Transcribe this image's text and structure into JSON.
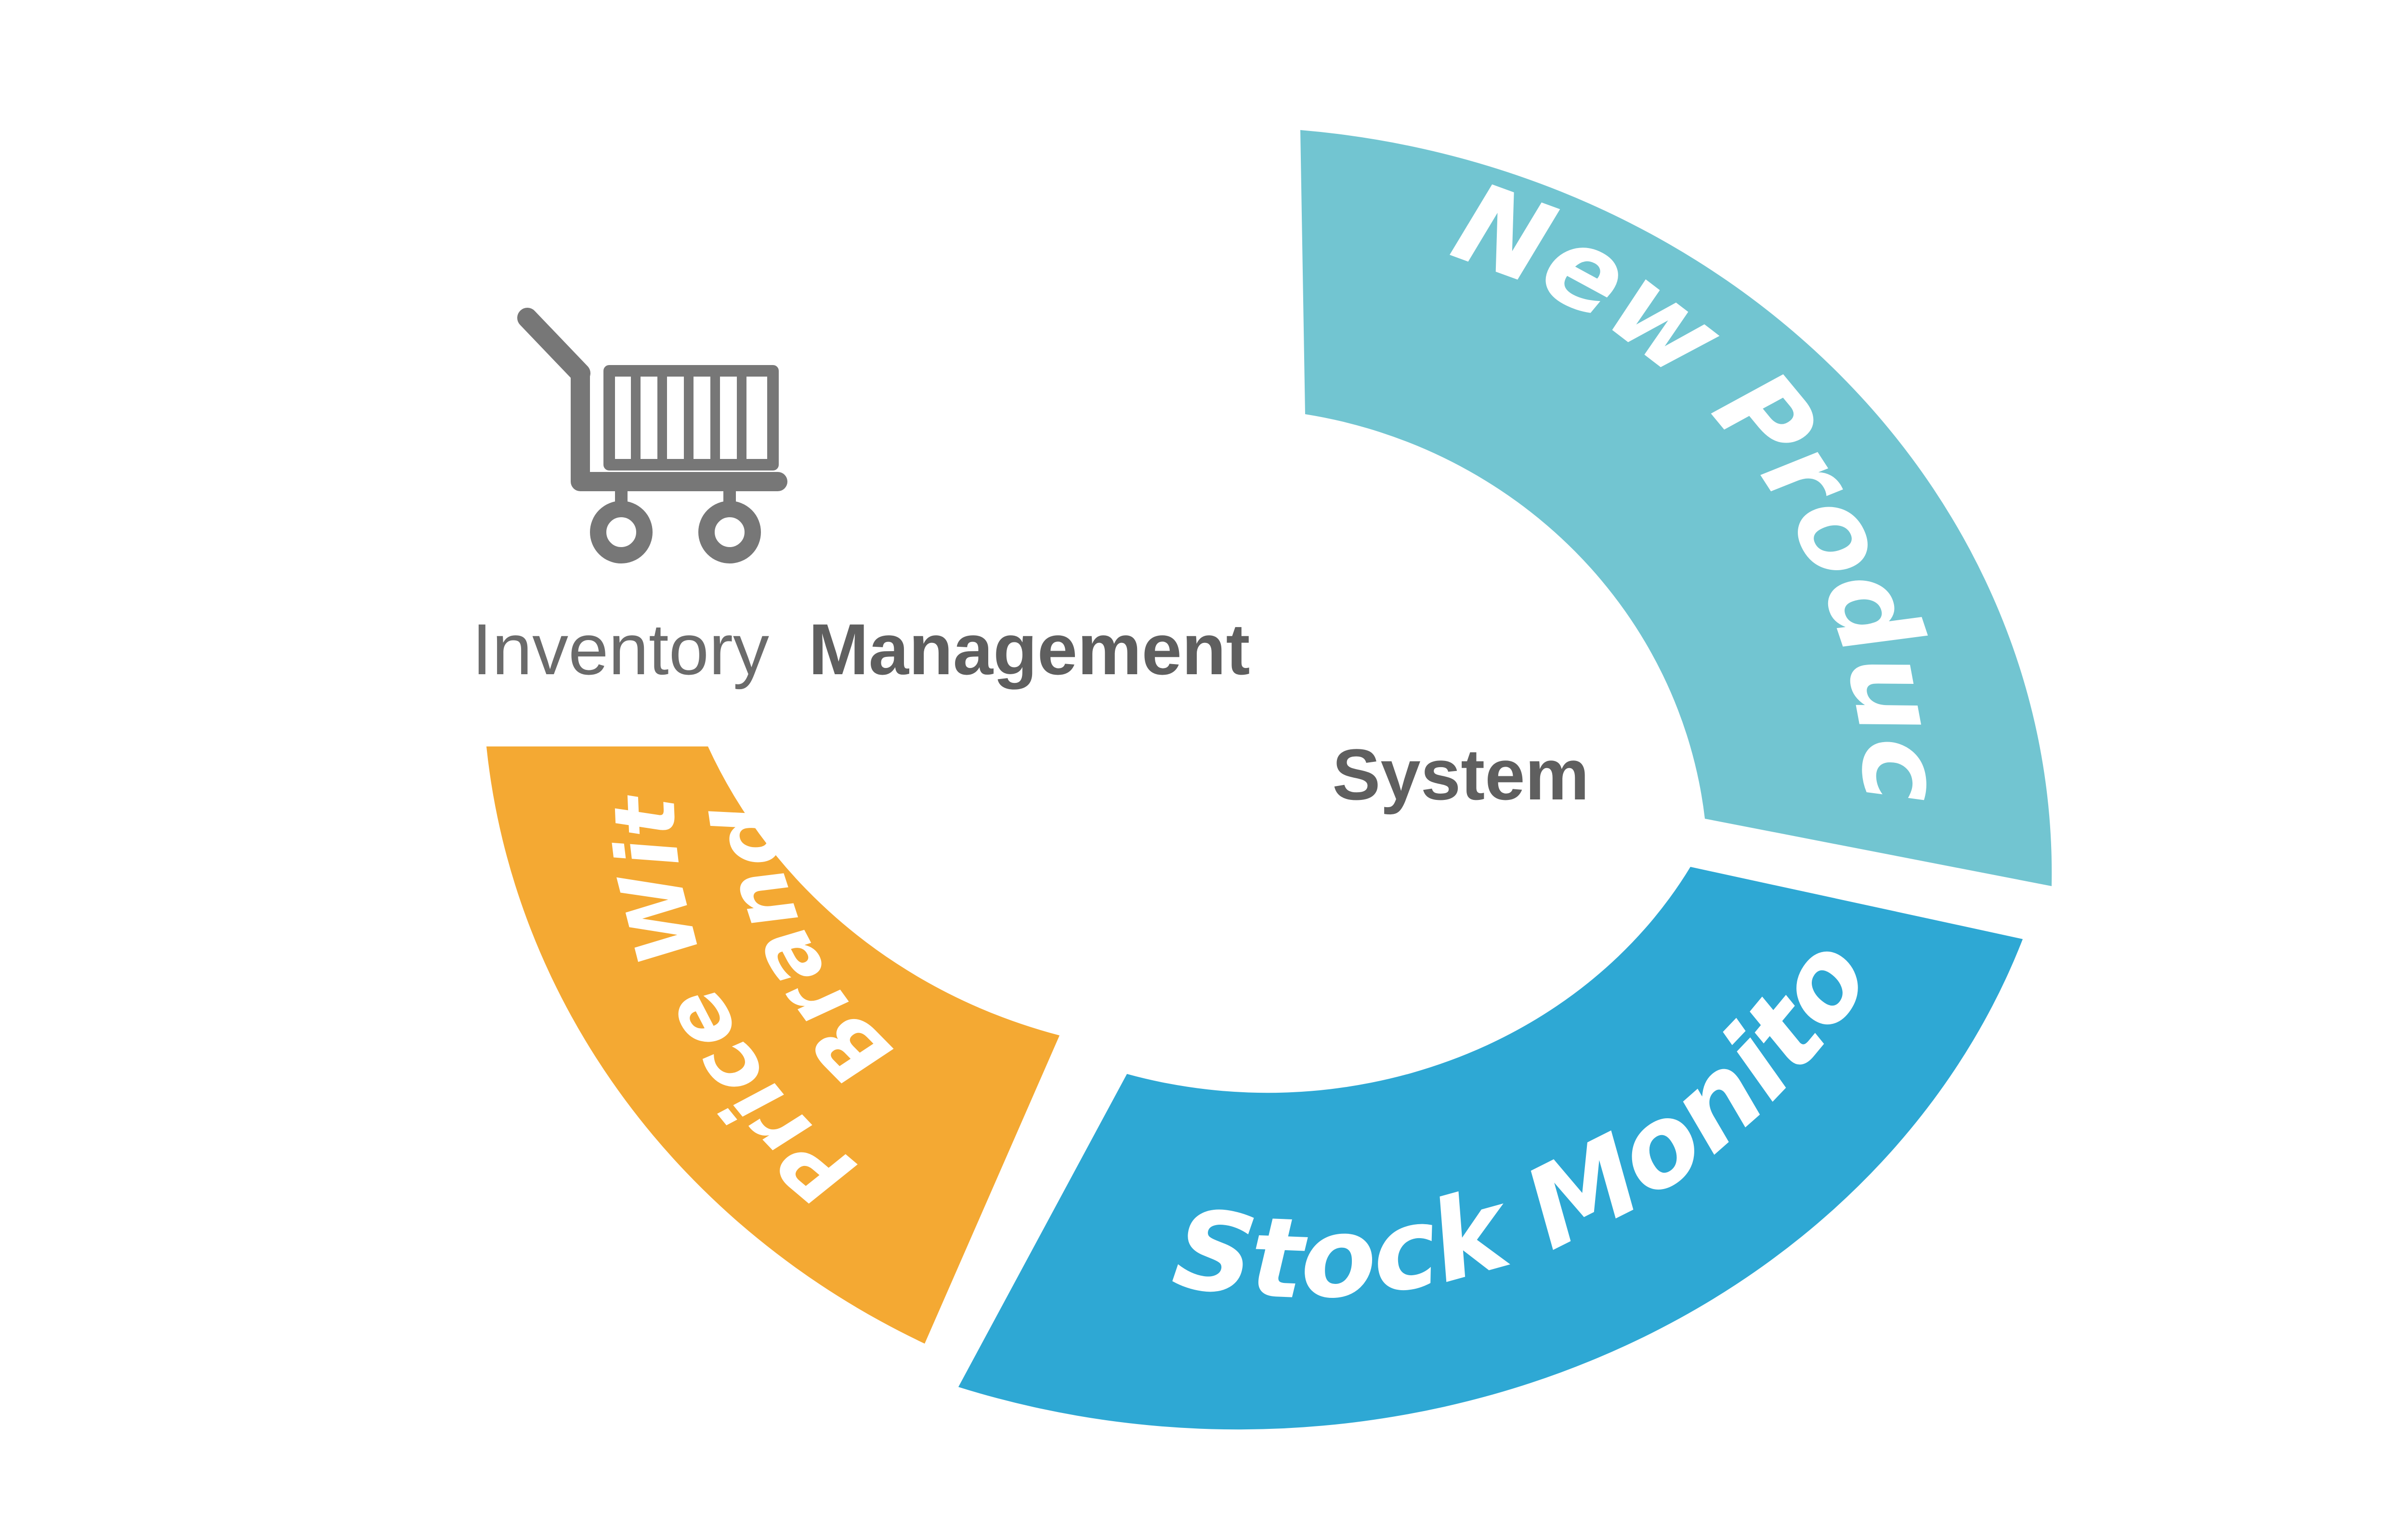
{
  "title": {
    "line1_light": "Inventory",
    "line1_bold": "Management",
    "line2": "System"
  },
  "logo": {
    "icon": "shopping-cart-icon"
  },
  "segments": [
    {
      "id": "new-product",
      "label": "New Product",
      "color": "#72c5d1"
    },
    {
      "id": "stock-monitoring",
      "label": "Stock Monitoring",
      "color": "#2ea8d4"
    },
    {
      "id": "price-with-brand",
      "label_line1": "Price With",
      "label_line2": "Brand",
      "color": "#f4a933"
    }
  ],
  "colors": {
    "background": "#ffffff",
    "cart": "#777777",
    "segment_text": "#ffffff"
  }
}
